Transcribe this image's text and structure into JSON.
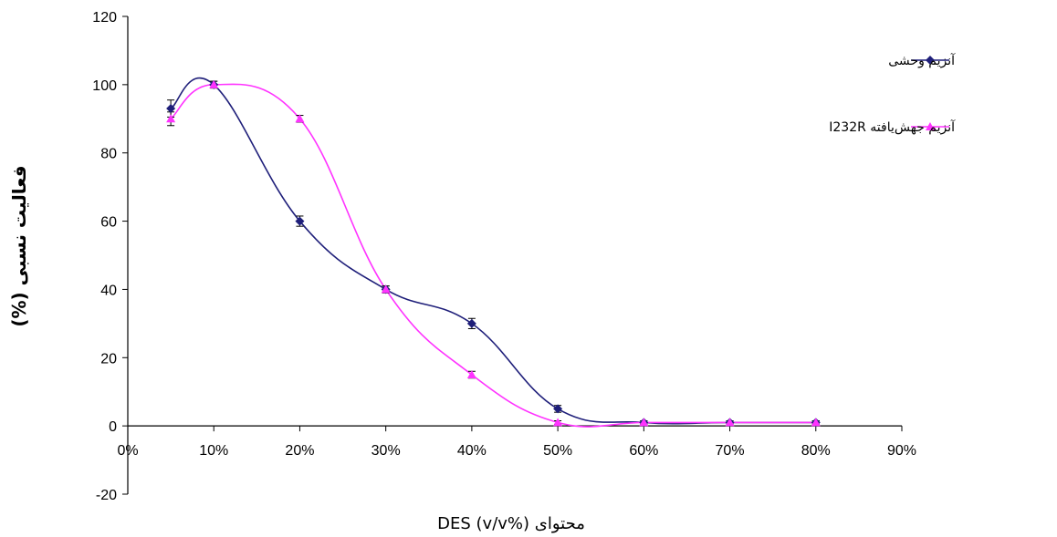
{
  "chart_data": {
    "type": "line",
    "x": [
      5,
      10,
      20,
      30,
      40,
      50,
      60,
      70,
      80
    ],
    "x_tick_values": [
      0,
      10,
      20,
      30,
      40,
      50,
      60,
      70,
      80,
      90
    ],
    "x_tick_labels": [
      "0%",
      "10%",
      "20%",
      "30%",
      "40%",
      "50%",
      "60%",
      "70%",
      "80%",
      "90%"
    ],
    "xlim": [
      0,
      90
    ],
    "y_tick_values": [
      -20,
      0,
      20,
      40,
      60,
      80,
      100,
      120
    ],
    "y_tick_labels": [
      "-20",
      "0",
      "20",
      "40",
      "60",
      "80",
      "100",
      "120"
    ],
    "ylim": [
      -20,
      120
    ],
    "xlabel": "محتوای DES (v/v%)",
    "ylabel": "فعالیت نسبی (%)",
    "grid": false,
    "legend_position": "top-right",
    "series": [
      {
        "name": "آنزیم وحشی",
        "color": "#1f1f7a",
        "marker": "diamond",
        "values": [
          93,
          100,
          60,
          40,
          30,
          5,
          1,
          1,
          1
        ],
        "errors": [
          2.5,
          1,
          1.5,
          1,
          1.5,
          1,
          0.5,
          0.5,
          0.5
        ]
      },
      {
        "name": "آنزیم جهش‌یافته I232R",
        "color": "#ff33ff",
        "marker": "triangle",
        "values": [
          90,
          100,
          90,
          40,
          15,
          1,
          1,
          1,
          1
        ],
        "errors": [
          2,
          1,
          1,
          1,
          1,
          0.5,
          0.5,
          0.5,
          0.5
        ]
      }
    ]
  }
}
